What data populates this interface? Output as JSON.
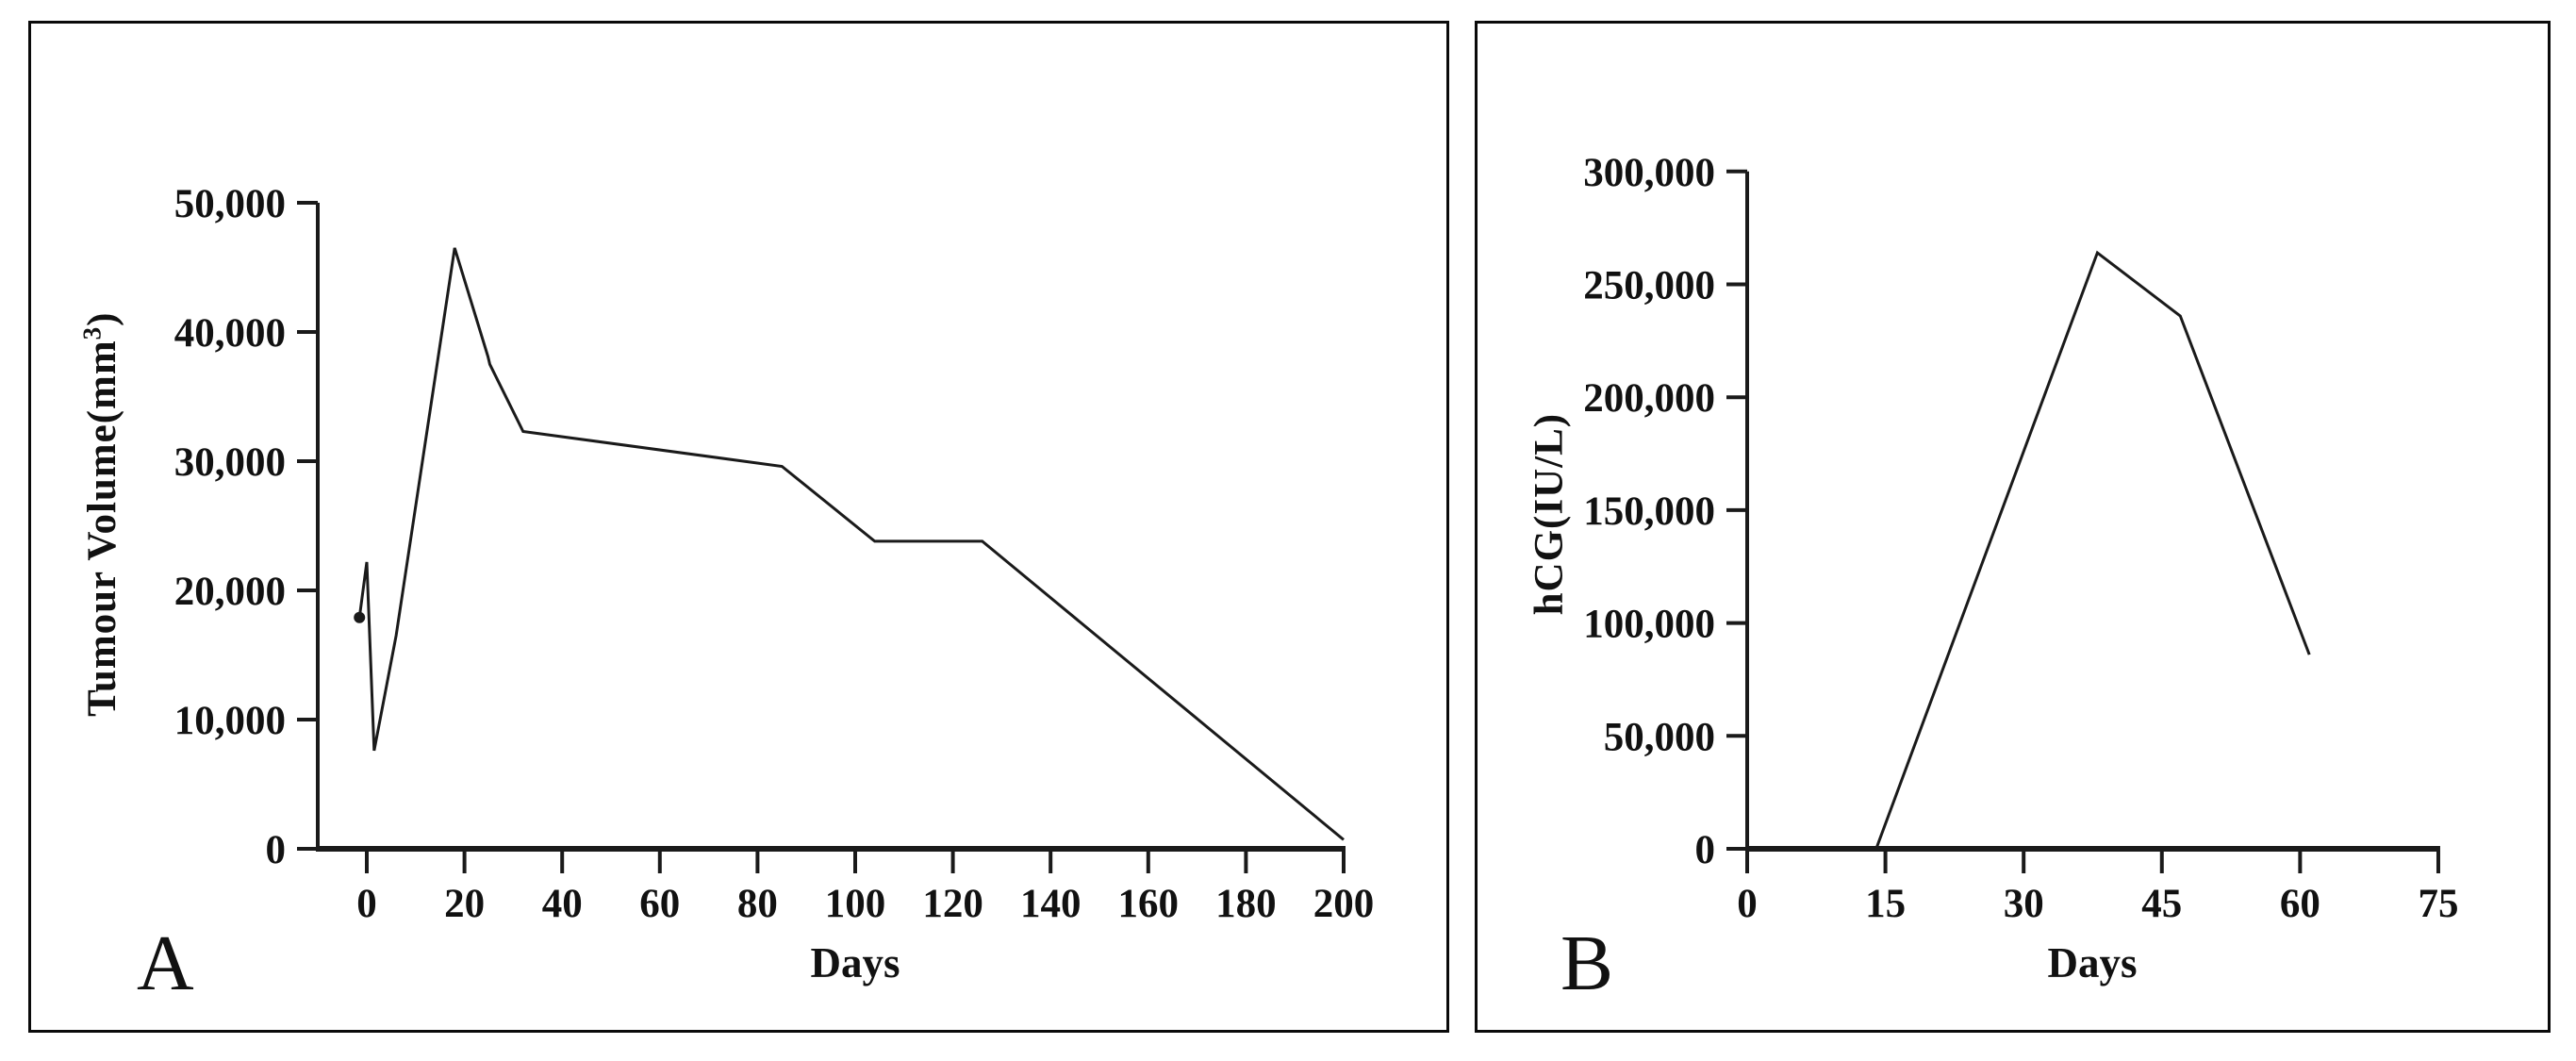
{
  "figure": {
    "panels": [
      {
        "letter": "A",
        "x_title": "Days",
        "y_title_base": "Tumour Volume(mm",
        "y_title_sup": "3",
        "y_title_close": ")"
      },
      {
        "letter": "B",
        "x_title": "Days",
        "y_title_base": "hCG(IU/L)",
        "y_title_sup": "",
        "y_title_close": ""
      }
    ]
  },
  "chart_data": [
    {
      "type": "line",
      "panel": "A",
      "title": "",
      "xlabel": "Days",
      "ylabel": "Tumour Volume(mm3)",
      "xlim": [
        -10,
        200
      ],
      "ylim": [
        0,
        50000
      ],
      "grid": false,
      "legend_position": "none",
      "x_ticks": [
        0,
        20,
        40,
        60,
        80,
        100,
        120,
        140,
        160,
        180,
        200
      ],
      "x_tick_labels": [
        "0",
        "20",
        "40",
        "60",
        "80",
        "100",
        "120",
        "140",
        "160",
        "180",
        "200"
      ],
      "y_ticks": [
        0,
        10000,
        20000,
        30000,
        40000,
        50000
      ],
      "y_tick_labels": [
        "0",
        "10,000",
        "20,000",
        "30,000",
        "40,000",
        "50,000"
      ],
      "series": [
        {
          "name": "tumour-volume",
          "color": "#1a1a1a",
          "points": [
            [
              -1.5,
              17900
            ],
            [
              0,
              22200
            ],
            [
              1.5,
              7600
            ],
            [
              6,
              16500
            ],
            [
              18,
              46500
            ],
            [
              24.8,
              38100
            ],
            [
              25.2,
              37500
            ],
            [
              32,
              32300
            ],
            [
              85,
              29600
            ],
            [
              104,
              23800
            ],
            [
              126,
              23800
            ],
            [
              200,
              700
            ]
          ]
        }
      ],
      "start_marker": [
        -1.5,
        17900
      ]
    },
    {
      "type": "line",
      "panel": "B",
      "title": "",
      "xlabel": "Days",
      "ylabel": "hCG(IU/L)",
      "xlim": [
        0,
        75
      ],
      "ylim": [
        0,
        300000
      ],
      "grid": false,
      "legend_position": "none",
      "x_ticks": [
        0,
        15,
        30,
        45,
        60,
        75
      ],
      "x_tick_labels": [
        "0",
        "15",
        "30",
        "45",
        "60",
        "75"
      ],
      "y_ticks": [
        0,
        50000,
        100000,
        150000,
        200000,
        250000,
        300000
      ],
      "y_tick_labels": [
        "0",
        "50,000",
        "100,000",
        "150,000",
        "200,000",
        "250,000",
        "300,000"
      ],
      "series": [
        {
          "name": "hcg",
          "color": "#1a1a1a",
          "points": [
            [
              14,
              0
            ],
            [
              38,
              264000
            ],
            [
              47,
              236000
            ],
            [
              61,
              86000
            ]
          ]
        }
      ],
      "start_marker": null
    }
  ]
}
